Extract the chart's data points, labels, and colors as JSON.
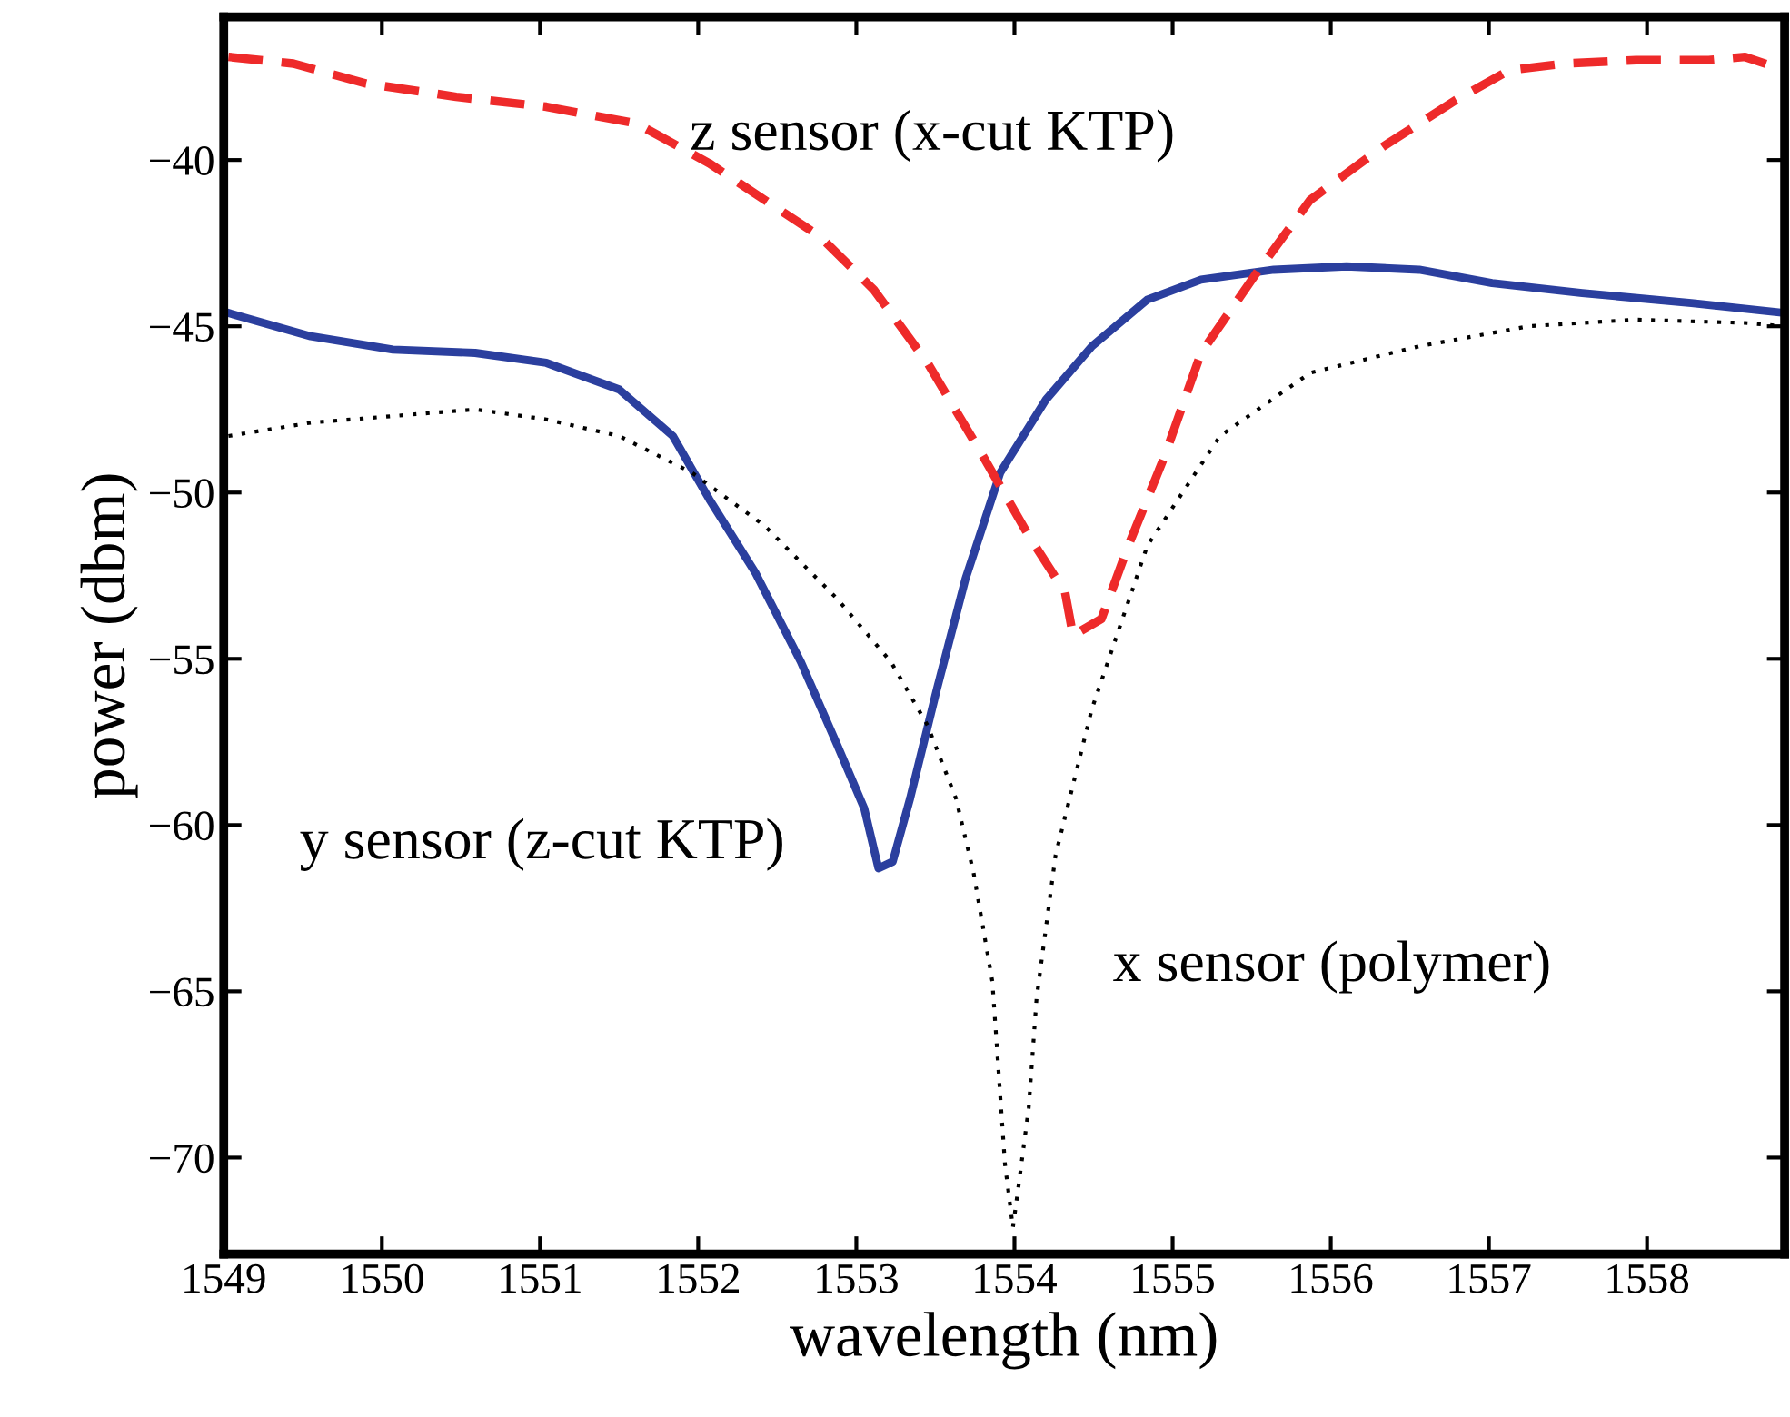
{
  "chart_data": {
    "type": "line",
    "xlabel": "wavelength (nm)",
    "ylabel": "power (dbm)",
    "xlim": [
      1549,
      1558.87
    ],
    "ylim": [
      -72.9,
      -35.7
    ],
    "xticks": [
      1549,
      1550,
      1551,
      1552,
      1553,
      1554,
      1555,
      1556,
      1557,
      1558
    ],
    "yticks": [
      -70,
      -65,
      -60,
      -55,
      -50,
      -45,
      -40
    ],
    "grid": false,
    "series": [
      {
        "color": "#2b3f9e",
        "line_style": "solid",
        "x": [
          1549.03,
          1549.55,
          1550.07,
          1550.59,
          1551.04,
          1551.5,
          1551.84,
          1552.07,
          1552.36,
          1552.65,
          1552.88,
          1553.05,
          1553.14,
          1553.23,
          1553.34,
          1553.51,
          1553.69,
          1553.91,
          1554.2,
          1554.49,
          1554.84,
          1555.18,
          1555.64,
          1556.1,
          1556.56,
          1557.02,
          1557.59,
          1558.28,
          1558.87
        ],
        "values": [
          -44.6,
          -45.3,
          -45.7,
          -45.8,
          -46.1,
          -46.9,
          -48.3,
          -50.2,
          -52.4,
          -55.1,
          -57.6,
          -59.5,
          -61.3,
          -61.1,
          -59.2,
          -55.9,
          -52.6,
          -49.4,
          -47.2,
          -45.6,
          -44.2,
          -43.6,
          -43.3,
          -43.2,
          -43.3,
          -43.7,
          -44.0,
          -44.3,
          -44.6
        ]
      },
      {
        "color": "#ee2a2a",
        "line_style": "dashed",
        "x": [
          1549.03,
          1549.44,
          1549.9,
          1550.47,
          1551.04,
          1551.61,
          1552.07,
          1552.42,
          1552.77,
          1553.11,
          1553.45,
          1553.8,
          1554.09,
          1554.32,
          1554.37,
          1554.55,
          1554.72,
          1554.95,
          1555.18,
          1555.53,
          1555.87,
          1556.33,
          1556.79,
          1557.13,
          1557.48,
          1557.93,
          1558.39,
          1558.62,
          1558.87
        ],
        "values": [
          -36.9,
          -37.1,
          -37.7,
          -38.1,
          -38.4,
          -38.9,
          -40.1,
          -41.2,
          -42.3,
          -43.9,
          -46.1,
          -48.9,
          -51.3,
          -53.0,
          -54.3,
          -53.8,
          -51.6,
          -48.9,
          -45.8,
          -43.4,
          -41.2,
          -39.6,
          -38.2,
          -37.3,
          -37.1,
          -37.0,
          -37.0,
          -36.9,
          -37.3
        ]
      },
      {
        "color": "#000000",
        "line_style": "dotted",
        "x": [
          1549.03,
          1549.55,
          1550.07,
          1550.59,
          1551.04,
          1551.5,
          1551.96,
          1552.42,
          1552.88,
          1553.22,
          1553.45,
          1553.63,
          1553.74,
          1553.86,
          1553.94,
          1553.99,
          1554.03,
          1554.09,
          1554.14,
          1554.26,
          1554.49,
          1554.84,
          1555.3,
          1555.87,
          1556.56,
          1557.25,
          1557.93,
          1558.62,
          1558.87
        ],
        "values": [
          -48.3,
          -47.9,
          -47.7,
          -47.5,
          -47.8,
          -48.3,
          -49.4,
          -51.0,
          -53.2,
          -55.1,
          -57.0,
          -59.2,
          -61.4,
          -64.7,
          -70.2,
          -72.1,
          -70.7,
          -68.5,
          -65.2,
          -60.9,
          -56.5,
          -51.6,
          -48.3,
          -46.4,
          -45.6,
          -45.0,
          -44.8,
          -44.9,
          -45.0
        ]
      }
    ],
    "annotations": [
      "z sensor (x-cut KTP)",
      "y sensor (z-cut KTP)",
      "x sensor (polymer)"
    ]
  }
}
